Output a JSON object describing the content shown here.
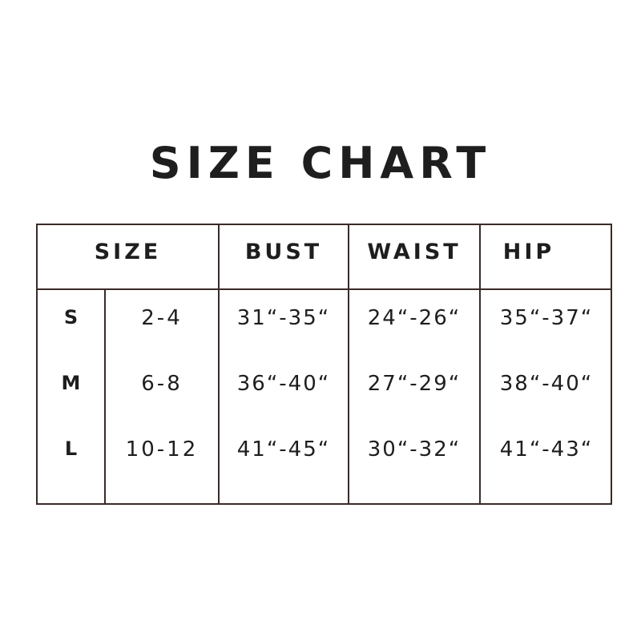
{
  "title": "SIZE CHART",
  "headers": [
    "SIZE",
    "BUST",
    "WAIST",
    "HIP"
  ],
  "rows": [
    {
      "size": "S",
      "us": "2-4",
      "bust": "31“-35“",
      "waist": "24“-26“",
      "hip": "35“-37“"
    },
    {
      "size": "M",
      "us": "6-8",
      "bust": "36“-40“",
      "waist": "27“-29“",
      "hip": "38“-40“"
    },
    {
      "size": "L",
      "us": "10-12",
      "bust": "41“-45“",
      "waist": "30“-32“",
      "hip": "41“-43“"
    }
  ],
  "colors": {
    "text": "#1e1e1e",
    "border": "#3a2a28"
  }
}
